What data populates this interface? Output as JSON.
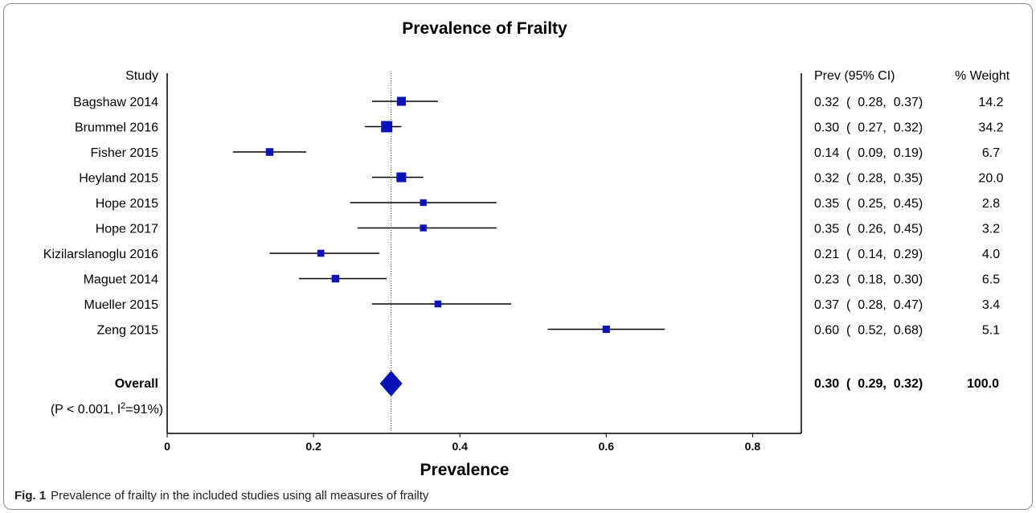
{
  "caption": {
    "label": "Fig. 1",
    "text": "Prevalence of frailty in the included studies using all measures of frailty"
  },
  "colors": {
    "marker": "#0a12b8",
    "line": "#000000"
  },
  "chart_data": {
    "type": "forest",
    "title": "Prevalence of Frailty",
    "xlabel": "Prevalence",
    "xlim": [
      0,
      0.86
    ],
    "xticks": [
      0,
      0.2,
      0.4,
      0.6,
      0.8
    ],
    "xtick_labels": [
      "0",
      "0.2",
      "0.4",
      "0.6",
      "0.8"
    ],
    "reference_line": 0.306,
    "headers": {
      "study": "Study",
      "estimate": "Prev (95% CI)",
      "weight": "% Weight"
    },
    "studies": [
      {
        "name": "Bagshaw 2014",
        "prev": 0.32,
        "lo": 0.28,
        "hi": 0.37,
        "weight": 14.2,
        "prev_text": "0.32",
        "lo_text": "0.28",
        "hi_text": "0.37",
        "weight_text": "14.2"
      },
      {
        "name": "Brummel 2016",
        "prev": 0.3,
        "lo": 0.27,
        "hi": 0.32,
        "weight": 34.2,
        "prev_text": "0.30",
        "lo_text": "0.27",
        "hi_text": "0.32",
        "weight_text": "34.2"
      },
      {
        "name": "Fisher 2015",
        "prev": 0.14,
        "lo": 0.09,
        "hi": 0.19,
        "weight": 6.7,
        "prev_text": "0.14",
        "lo_text": "0.09",
        "hi_text": "0.19",
        "weight_text": "6.7"
      },
      {
        "name": "Heyland 2015",
        "prev": 0.32,
        "lo": 0.28,
        "hi": 0.35,
        "weight": 20.0,
        "prev_text": "0.32",
        "lo_text": "0.28",
        "hi_text": "0.35",
        "weight_text": "20.0"
      },
      {
        "name": "Hope 2015",
        "prev": 0.35,
        "lo": 0.25,
        "hi": 0.45,
        "weight": 2.8,
        "prev_text": "0.35",
        "lo_text": "0.25",
        "hi_text": "0.45",
        "weight_text": "2.8"
      },
      {
        "name": "Hope 2017",
        "prev": 0.35,
        "lo": 0.26,
        "hi": 0.45,
        "weight": 3.2,
        "prev_text": "0.35",
        "lo_text": "0.26",
        "hi_text": "0.45",
        "weight_text": "3.2"
      },
      {
        "name": "Kizilarslanoglu 2016",
        "prev": 0.21,
        "lo": 0.14,
        "hi": 0.29,
        "weight": 4.0,
        "prev_text": "0.21",
        "lo_text": "0.14",
        "hi_text": "0.29",
        "weight_text": "4.0"
      },
      {
        "name": "Maguet 2014",
        "prev": 0.23,
        "lo": 0.18,
        "hi": 0.3,
        "weight": 6.5,
        "prev_text": "0.23",
        "lo_text": "0.18",
        "hi_text": "0.30",
        "weight_text": "6.5"
      },
      {
        "name": "Mueller 2015",
        "prev": 0.37,
        "lo": 0.28,
        "hi": 0.47,
        "weight": 3.4,
        "prev_text": "0.37",
        "lo_text": "0.28",
        "hi_text": "0.47",
        "weight_text": "3.4"
      },
      {
        "name": "Zeng 2015",
        "prev": 0.6,
        "lo": 0.52,
        "hi": 0.68,
        "weight": 5.1,
        "prev_text": "0.60",
        "lo_text": "0.52",
        "hi_text": "0.68",
        "weight_text": "5.1"
      }
    ],
    "overall": {
      "name": "Overall",
      "prev": 0.3,
      "lo": 0.29,
      "hi": 0.32,
      "weight": 100.0,
      "prev_text": "0.30",
      "lo_text": "0.29",
      "hi_text": "0.32",
      "weight_text": "100.0",
      "heterogeneity_prefix": "(P < 0.001, I",
      "heterogeneity_sup": "2",
      "heterogeneity_suffix": "=91%)"
    }
  }
}
